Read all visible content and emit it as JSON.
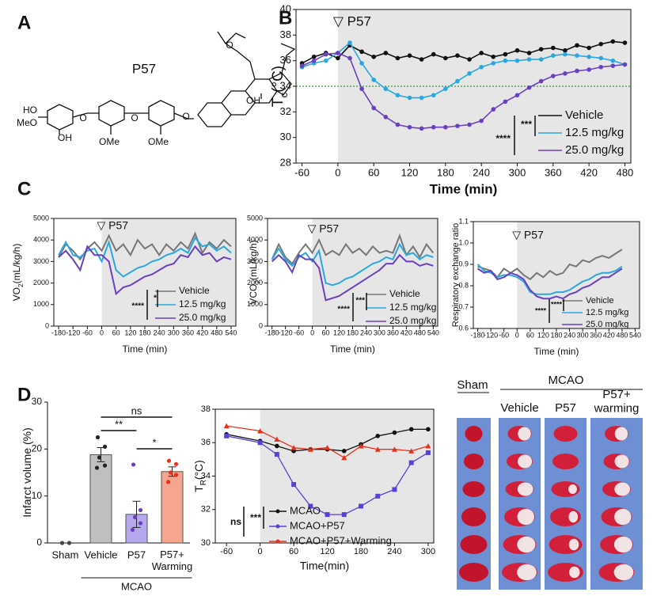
{
  "panel_letters": [
    "A",
    "B",
    "C",
    "D"
  ],
  "structure": {
    "name": "P57",
    "labels": [
      "HO",
      "MeO",
      "OH",
      "OMe",
      "OMe",
      "OH",
      "O",
      "O",
      "O",
      "O"
    ]
  },
  "image_panel": {
    "sham": "Sham",
    "group": "MCAO",
    "columns": [
      "Vehicle",
      "P57",
      "P57+\nwarming"
    ]
  },
  "chart_data": [
    {
      "type": "line",
      "annotation": "▽ P57",
      "xlabel": "Time (min)",
      "ylabel": [
        "T",
        "c",
        "(°C)"
      ],
      "x": [
        -60,
        -40,
        -20,
        0,
        20,
        40,
        60,
        80,
        100,
        120,
        140,
        160,
        180,
        200,
        220,
        240,
        260,
        280,
        300,
        320,
        340,
        360,
        380,
        400,
        420,
        440,
        460,
        480
      ],
      "xlim": [
        -70,
        490
      ],
      "ylim": [
        28,
        40
      ],
      "xticks": [
        -60,
        0,
        60,
        120,
        180,
        240,
        300,
        360,
        420,
        480
      ],
      "yticks": [
        28,
        30,
        32,
        34,
        36,
        38,
        40
      ],
      "hline": 34,
      "hline_color": "#3a9a3a",
      "markers": true,
      "significance": [
        "***",
        "****"
      ],
      "series": [
        {
          "name": "Vehicle",
          "color": "#111111",
          "values": [
            35.8,
            36.3,
            36.6,
            36.2,
            37.2,
            36.7,
            36.3,
            36.6,
            36.2,
            36.4,
            36.1,
            36.5,
            36.2,
            36.4,
            36.1,
            36.6,
            36.3,
            36.5,
            36.8,
            36.6,
            36.9,
            37.0,
            36.8,
            37.2,
            37.0,
            37.3,
            37.5,
            37.4
          ]
        },
        {
          "name": "12.5 mg/kg",
          "color": "#29a8e0",
          "values": [
            35.5,
            35.8,
            36.0,
            36.6,
            37.4,
            35.8,
            34.5,
            33.8,
            33.3,
            33.1,
            33.1,
            33.3,
            33.8,
            34.4,
            35.0,
            35.5,
            35.8,
            36.0,
            36.0,
            36.1,
            36.1,
            36.4,
            36.5,
            36.4,
            36.3,
            36.2,
            36.0,
            35.7
          ]
        },
        {
          "name": "25.0 mg/kg",
          "color": "#6a3fc1",
          "values": [
            35.6,
            36.0,
            36.5,
            36.6,
            36.2,
            33.8,
            32.3,
            31.6,
            31.0,
            30.8,
            30.7,
            30.8,
            30.8,
            30.9,
            31.0,
            31.3,
            32.2,
            32.8,
            33.3,
            33.9,
            34.4,
            34.8,
            35.0,
            35.2,
            35.3,
            35.5,
            35.6,
            35.7
          ]
        }
      ]
    },
    {
      "type": "line",
      "annotation": "▽ P57",
      "xlabel": "Time (min)",
      "ylabel": [
        "VO",
        "2",
        "(mL/kg/h)"
      ],
      "x": [
        -180,
        -150,
        -120,
        -90,
        -60,
        -30,
        0,
        30,
        60,
        90,
        120,
        150,
        180,
        210,
        240,
        270,
        300,
        330,
        360,
        390,
        420,
        450,
        480,
        510,
        540
      ],
      "xlim": [
        -200,
        560
      ],
      "ylim": [
        0,
        5000
      ],
      "xticks": [
        -180,
        -120,
        -60,
        0,
        60,
        120,
        180,
        240,
        300,
        360,
        420,
        480,
        540
      ],
      "yticks": [
        0,
        1000,
        2000,
        3000,
        4000,
        5000
      ],
      "markers": false,
      "significance": [
        "****",
        "*"
      ],
      "series": [
        {
          "name": "Vehicle",
          "color": "#777777",
          "values": [
            3200,
            3800,
            3500,
            3100,
            3600,
            3900,
            3500,
            4200,
            3500,
            3800,
            3300,
            4000,
            3600,
            3800,
            3300,
            3800,
            3500,
            3900,
            3600,
            4300,
            3400,
            3900,
            3600,
            4000,
            3700
          ]
        },
        {
          "name": "12.5 mg/kg",
          "color": "#29a8e0",
          "values": [
            3300,
            3900,
            3300,
            3200,
            3500,
            3600,
            3000,
            3900,
            2600,
            2300,
            2500,
            2700,
            2800,
            3000,
            3100,
            3300,
            3400,
            3600,
            3400,
            4100,
            3700,
            3800,
            3500,
            3700,
            3400
          ]
        },
        {
          "name": "25.0 mg/kg",
          "color": "#6a3fc1",
          "values": [
            3200,
            3500,
            3100,
            2600,
            3700,
            3300,
            3300,
            3000,
            1500,
            1800,
            1900,
            2100,
            2300,
            2400,
            2600,
            2800,
            2900,
            3300,
            3200,
            3700,
            3300,
            3400,
            3000,
            3200,
            3100
          ]
        }
      ]
    },
    {
      "type": "line",
      "annotation": "▽ P57",
      "xlabel": "Time (min)",
      "ylabel": [
        "VCO",
        "2",
        "(mL/kg/h)"
      ],
      "x": [
        -180,
        -150,
        -120,
        -90,
        -60,
        -30,
        0,
        30,
        60,
        90,
        120,
        150,
        180,
        210,
        240,
        270,
        300,
        330,
        360,
        390,
        420,
        450,
        480,
        510,
        540
      ],
      "xlim": [
        -200,
        560
      ],
      "ylim": [
        0,
        5000
      ],
      "xticks": [
        -180,
        -120,
        -60,
        0,
        60,
        120,
        180,
        240,
        300,
        360,
        420,
        480,
        540
      ],
      "yticks": [
        0,
        1000,
        2000,
        3000,
        4000,
        5000
      ],
      "markers": false,
      "significance": [
        "****",
        "***"
      ],
      "series": [
        {
          "name": "Vehicle",
          "color": "#777777",
          "values": [
            3100,
            3800,
            3200,
            2900,
            3400,
            3800,
            3400,
            4000,
            3300,
            3500,
            3300,
            3800,
            3400,
            3600,
            3300,
            3700,
            3400,
            3500,
            3400,
            4200,
            3300,
            3700,
            3200,
            3800,
            3400
          ]
        },
        {
          "name": "12.5 mg/kg",
          "color": "#29a8e0",
          "values": [
            3100,
            3600,
            3100,
            2800,
            3200,
            3400,
            3000,
            3500,
            2000,
            1900,
            2000,
            2200,
            2300,
            2500,
            2700,
            2900,
            3000,
            3200,
            3100,
            3800,
            3300,
            3400,
            3100,
            3300,
            3200
          ]
        },
        {
          "name": "25.0 mg/kg",
          "color": "#6a3fc1",
          "values": [
            3000,
            3300,
            3000,
            2500,
            3300,
            3100,
            3100,
            2700,
            1200,
            1300,
            1400,
            1600,
            1800,
            2000,
            2200,
            2400,
            2600,
            2900,
            2900,
            3300,
            3000,
            3000,
            2800,
            2900,
            2800
          ]
        }
      ]
    },
    {
      "type": "line",
      "annotation": "▽ P57",
      "xlabel": "Time (min)",
      "ylabel": [
        "Respiratory exchange ratio"
      ],
      "x": [
        -180,
        -150,
        -120,
        -90,
        -60,
        -30,
        0,
        30,
        60,
        90,
        120,
        150,
        180,
        210,
        240,
        270,
        300,
        330,
        360,
        390,
        420,
        450,
        480
      ],
      "xlim": [
        -200,
        560
      ],
      "ylim": [
        0.6,
        1.1
      ],
      "xticks": [
        -180,
        -120,
        -60,
        0,
        60,
        120,
        180,
        240,
        300,
        360,
        420,
        480,
        540
      ],
      "yticks": [
        0.6,
        0.7,
        0.8,
        0.9,
        {
          "value": 1,
          "label": "1.0"
        },
        1.1
      ],
      "markers": false,
      "significance": [
        "****",
        "****"
      ],
      "series": [
        {
          "name": "Vehicle",
          "color": "#777777",
          "values": [
            0.89,
            0.88,
            0.87,
            0.84,
            0.88,
            0.86,
            0.88,
            0.85,
            0.83,
            0.86,
            0.84,
            0.87,
            0.85,
            0.86,
            0.9,
            0.89,
            0.92,
            0.91,
            0.93,
            0.94,
            0.93,
            0.95,
            0.97
          ]
        },
        {
          "name": "12.5 mg/kg",
          "color": "#29a8e0",
          "values": [
            0.9,
            0.87,
            0.86,
            0.84,
            0.85,
            0.85,
            0.84,
            0.82,
            0.77,
            0.76,
            0.76,
            0.76,
            0.77,
            0.77,
            0.78,
            0.8,
            0.82,
            0.83,
            0.85,
            0.86,
            0.86,
            0.87,
            0.89
          ]
        },
        {
          "name": "25.0 mg/kg",
          "color": "#6a3fc1",
          "values": [
            0.88,
            0.86,
            0.87,
            0.83,
            0.84,
            0.86,
            0.85,
            0.83,
            0.78,
            0.75,
            0.74,
            0.74,
            0.75,
            0.74,
            0.76,
            0.77,
            0.79,
            0.8,
            0.82,
            0.84,
            0.84,
            0.86,
            0.88
          ]
        }
      ]
    },
    {
      "type": "bar",
      "ylabel": "Infarct volume (%)",
      "categories": [
        "Sham",
        "Vehicle",
        "P57",
        "P57+\nWarming"
      ],
      "group_label": "MCAO",
      "values": [
        0,
        18.8,
        6.1,
        15.2
      ],
      "errors": [
        0,
        1.5,
        2.8,
        1.0
      ],
      "colors": [
        "#bfbfbf",
        "#bfbfbf",
        "#b6a8ec",
        "#f6a58e"
      ],
      "dot_colors": [
        "#444444",
        "#222222",
        "#6a3fc1",
        "#e8311a"
      ],
      "points": [
        [
          0,
          0
        ],
        [
          22.5,
          20.5,
          18.2,
          16.5,
          16
        ],
        [
          16.7,
          7,
          5.5,
          4.2,
          2.8
        ],
        [
          17.5,
          16.8,
          15,
          14.5,
          13
        ]
      ],
      "ylim": [
        0,
        30
      ],
      "yticks": [
        0,
        10,
        20,
        30
      ],
      "significance": [
        "ns",
        "**",
        "*"
      ]
    },
    {
      "type": "line",
      "xlabel": "Time(min)",
      "ylabel": [
        "T",
        "R",
        "(°C)"
      ],
      "x": [
        -60,
        0,
        30,
        60,
        90,
        120,
        150,
        180,
        210,
        240,
        270,
        300
      ],
      "xlim": [
        -80,
        310
      ],
      "ylim": [
        30,
        38
      ],
      "xticks": [
        -60,
        0,
        60,
        120,
        180,
        240,
        300
      ],
      "yticks": [
        30,
        32,
        34,
        36,
        38
      ],
      "markers": true,
      "significance": [
        "ns",
        "***"
      ],
      "series": [
        {
          "name": "MCAO",
          "color": "#111111",
          "marker": "circle",
          "values": [
            36.5,
            36.1,
            35.8,
            35.5,
            35.6,
            35.6,
            35.5,
            35.9,
            36.4,
            36.6,
            36.8,
            36.8
          ]
        },
        {
          "name": "MCAO+P57",
          "color": "#5b3fd6",
          "marker": "square",
          "values": [
            36.4,
            36.0,
            35.3,
            33.5,
            32.2,
            31.7,
            31.7,
            32.2,
            32.8,
            33.2,
            34.8,
            35.4
          ]
        },
        {
          "name": "MCAO+P57+Warming",
          "color": "#e8311a",
          "marker": "triangle",
          "values": [
            37.0,
            36.7,
            36.2,
            35.7,
            35.6,
            35.7,
            35.1,
            35.8,
            35.6,
            35.6,
            35.5,
            35.8
          ]
        }
      ]
    }
  ]
}
